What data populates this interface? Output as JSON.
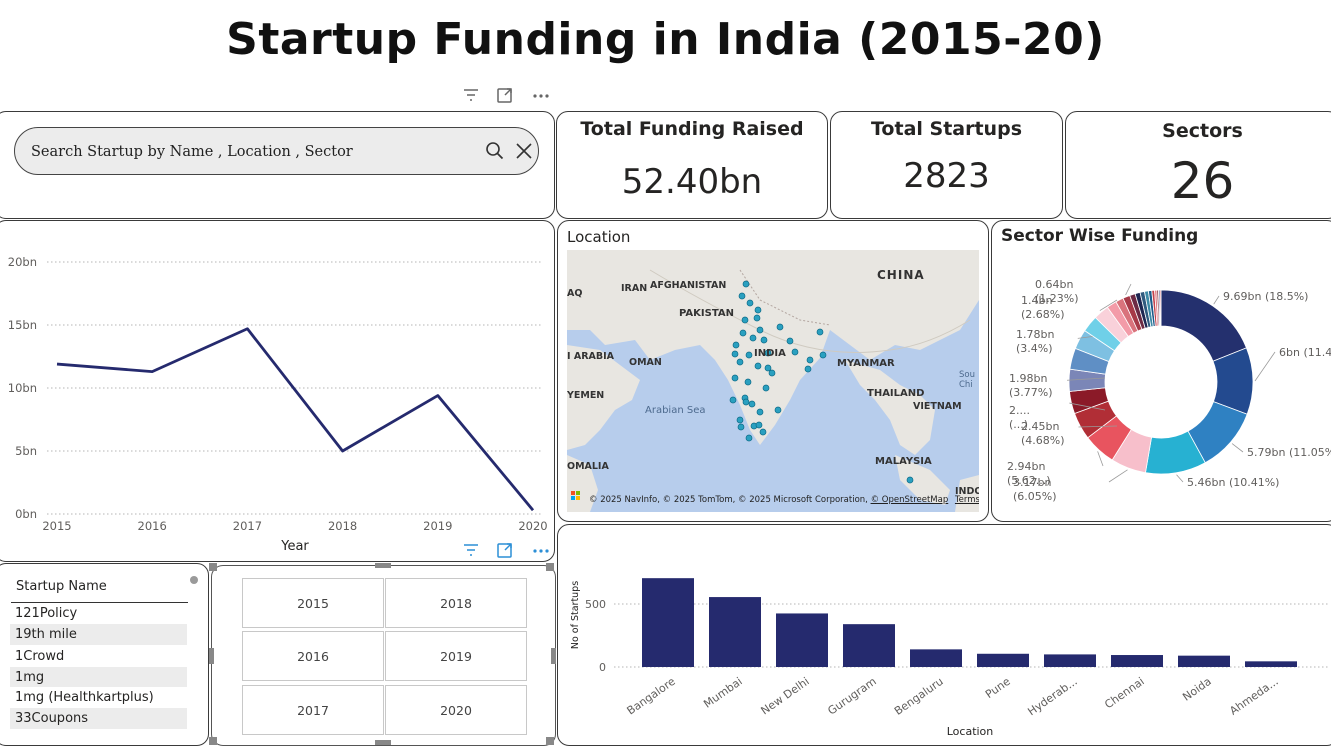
{
  "page": {
    "title": "Startup Funding in India (2015-20)"
  },
  "search": {
    "placeholder": "Search Startup by Name , Location , Sector"
  },
  "kpis": [
    {
      "title": "Total Funding Raised",
      "value": "52.40bn"
    },
    {
      "title": "Total Startups",
      "value": "2823"
    },
    {
      "title": "Sectors",
      "value": "26"
    }
  ],
  "line_chart": {
    "title": "",
    "xlabel": "Year",
    "ylabel": "",
    "x": [
      "2015",
      "2016",
      "2017",
      "2018",
      "2019",
      "2020"
    ],
    "values": [
      11.9,
      11.3,
      14.7,
      5.0,
      9.4,
      0.3
    ],
    "yticks": [
      "0bn",
      "5bn",
      "10bn",
      "15bn",
      "20bn"
    ],
    "ylim": [
      0,
      20
    ],
    "color": "#252a6e"
  },
  "map": {
    "title": "Location",
    "labels": [
      "CHINA",
      "IRAN",
      "AFGHANISTAN",
      "PAKISTAN",
      "INDIA",
      "OMAN",
      "MYANMAR",
      "THAILAND",
      "VIETNAM",
      "MALAYSIA",
      "Arabian Sea",
      "AQ",
      "I ARABIA",
      "YEMEN",
      "OMALIA",
      "INDO",
      "Sou Chi"
    ],
    "attribution": "© 2025 NavInfo, © 2025 TomTom, © 2025 Microsoft Corporation,",
    "osm": "© OpenStreetMap",
    "terms": "Terms",
    "point_color": "#2aa0c0",
    "points": [
      [
        746,
        284
      ],
      [
        742,
        296
      ],
      [
        750,
        303
      ],
      [
        758,
        310
      ],
      [
        745,
        320
      ],
      [
        757,
        318
      ],
      [
        760,
        330
      ],
      [
        743,
        333
      ],
      [
        753,
        338
      ],
      [
        764,
        340
      ],
      [
        736,
        345
      ],
      [
        768,
        353
      ],
      [
        749,
        355
      ],
      [
        740,
        362
      ],
      [
        758,
        366
      ],
      [
        772,
        373
      ],
      [
        735,
        378
      ],
      [
        748,
        382
      ],
      [
        766,
        388
      ],
      [
        745,
        398
      ],
      [
        752,
        404
      ],
      [
        760,
        412
      ],
      [
        740,
        420
      ],
      [
        754,
        426
      ],
      [
        763,
        432
      ],
      [
        749,
        438
      ],
      [
        778,
        410
      ],
      [
        790,
        341
      ],
      [
        795,
        352
      ],
      [
        810,
        360
      ],
      [
        820,
        332
      ],
      [
        823,
        355
      ],
      [
        735,
        354
      ],
      [
        733,
        400
      ],
      [
        741,
        427
      ],
      [
        768,
        368
      ],
      [
        780,
        327
      ],
      [
        808,
        369
      ],
      [
        746,
        402
      ],
      [
        759,
        425
      ]
    ]
  },
  "donut_chart": {
    "title": "Sector Wise Funding",
    "type": "pie",
    "slices": [
      {
        "value": 9.69,
        "label": "9.69bn (18.5%)",
        "color": "#24306e"
      },
      {
        "value": 6.0,
        "label": "6bn (11.4...)",
        "color": "#234a8f"
      },
      {
        "value": 5.79,
        "label": "5.79bn (11.05%)",
        "color": "#2f81c2"
      },
      {
        "value": 5.46,
        "label": "5.46bn (10.41%)",
        "color": "#27b1d2"
      },
      {
        "value": 3.17,
        "label": "3.17bn (6.05%)",
        "color": "#f7bfcb"
      },
      {
        "value": 2.94,
        "label": "2.94bn (5.62...)",
        "color": "#e8545f"
      },
      {
        "value": 2.45,
        "label": "2.45bn (4.68%)",
        "color": "#b12e36"
      },
      {
        "value": 2.0,
        "label": "2.... (...)",
        "color": "#8b1a28"
      },
      {
        "value": 1.98,
        "label": "1.98bn (3.77%)",
        "color": "#7b86b7"
      },
      {
        "value": 1.9,
        "label": "",
        "color": "#5f8fc5"
      },
      {
        "value": 1.78,
        "label": "1.78bn (3.4%)",
        "color": "#7ec0e2"
      },
      {
        "value": 1.5,
        "label": "",
        "color": "#6fd0e8"
      },
      {
        "value": 1.4,
        "label": "1.4bn (2.68%)",
        "color": "#f9d1da"
      },
      {
        "value": 0.9,
        "label": "",
        "color": "#f39ba8"
      },
      {
        "value": 0.7,
        "label": "",
        "color": "#d9737c"
      },
      {
        "value": 0.64,
        "label": "0.64bn (1.23%)",
        "color": "#a73a48"
      },
      {
        "value": 0.5,
        "label": "",
        "color": "#6c2a44"
      },
      {
        "value": 0.45,
        "label": "",
        "color": "#1d2652"
      },
      {
        "value": 0.4,
        "label": "",
        "color": "#2f5a7f"
      },
      {
        "value": 0.35,
        "label": "",
        "color": "#3d8aa6"
      },
      {
        "value": 0.3,
        "label": "",
        "color": "#1e5b8a"
      },
      {
        "value": 0.25,
        "label": "",
        "color": "#c2434d"
      },
      {
        "value": 0.2,
        "label": "",
        "color": "#e37c85"
      },
      {
        "value": 0.15,
        "label": "",
        "color": "#7a2230"
      },
      {
        "value": 0.12,
        "label": "",
        "color": "#444a88"
      },
      {
        "value": 0.1,
        "label": "",
        "color": "#d84e59"
      }
    ]
  },
  "bar_chart": {
    "type": "bar",
    "title": "",
    "xlabel": "Location",
    "ylabel": "No of Startups",
    "categories": [
      "Bangalore",
      "Mumbai",
      "New Delhi",
      "Gurugram",
      "Bengaluru",
      "Pune",
      "Hyderab...",
      "Chennai",
      "Noida",
      "Ahmeda..."
    ],
    "values": [
      705,
      555,
      425,
      340,
      140,
      105,
      100,
      95,
      90,
      45
    ],
    "yticks": [
      "0",
      "500"
    ],
    "ylim": [
      0,
      780
    ],
    "color": "#252a6e"
  },
  "startup_list": {
    "header": "Startup Name",
    "items": [
      "121Policy",
      "19th mile",
      "1Crowd",
      "1mg",
      "1mg (Healthkartplus)",
      "33Coupons"
    ]
  },
  "year_slicer": {
    "years": [
      "2015",
      "2018",
      "2016",
      "2019",
      "2017",
      "2020"
    ]
  }
}
